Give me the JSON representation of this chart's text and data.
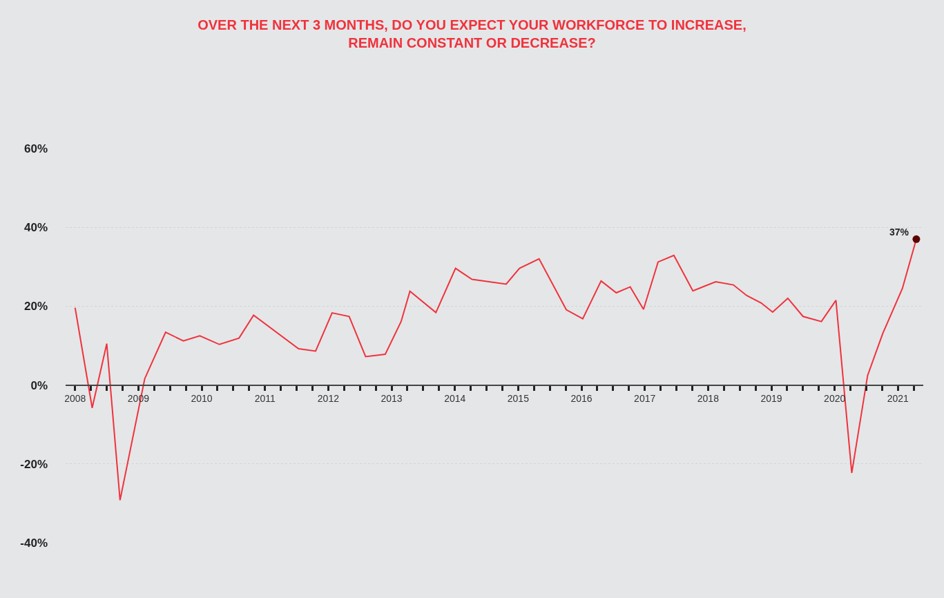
{
  "chart_data": {
    "type": "line",
    "title": "OVER THE NEXT 3 MONTHS, DO YOU EXPECT YOUR WORKFORCE TO INCREASE,\nREMAIN CONSTANT OR DECREASE?",
    "series": [
      {
        "color": "#f0323c",
        "x": [
          2008.0,
          2008.27,
          2008.5,
          2008.71,
          2009.1,
          2009.43,
          2009.71,
          2009.97,
          2010.28,
          2010.59,
          2010.82,
          2011.53,
          2011.8,
          2012.06,
          2012.33,
          2012.59,
          2012.9,
          2013.15,
          2013.29,
          2013.7,
          2014.01,
          2014.27,
          2014.81,
          2015.02,
          2015.33,
          2015.76,
          2016.02,
          2016.31,
          2016.55,
          2016.77,
          2016.98,
          2017.21,
          2017.46,
          2017.76,
          2018.12,
          2018.4,
          2018.61,
          2018.84,
          2019.02,
          2019.26,
          2019.5,
          2019.79,
          2020.02,
          2020.27,
          2020.52,
          2020.76,
          2021.07,
          2021.29
        ],
        "values": [
          19.6,
          -5.8,
          10.5,
          -29.2,
          1.6,
          13.4,
          11.2,
          12.5,
          10.3,
          11.9,
          17.7,
          9.2,
          8.6,
          18.3,
          17.4,
          7.2,
          7.8,
          16.1,
          23.8,
          18.4,
          29.6,
          26.8,
          25.6,
          29.6,
          32.0,
          19.1,
          16.8,
          26.4,
          23.4,
          24.9,
          19.2,
          31.2,
          32.9,
          23.9,
          26.2,
          25.4,
          22.7,
          20.8,
          18.5,
          22.0,
          17.4,
          16.1,
          21.5,
          -22.3,
          2.4,
          13.1,
          24.5,
          37
        ]
      },
      {
        "type": "scatter",
        "color": "#5c0000",
        "x": [
          2021.29
        ],
        "values": [
          37
        ]
      }
    ],
    "annotations": [
      {
        "text": "37%",
        "x": 2021.29,
        "y": 37
      }
    ],
    "xlim": [
      2007.85,
      2021.4
    ],
    "xticks": [
      2008,
      {
        "value": 2008.25,
        "label": null
      },
      {
        "value": 2008.5,
        "label": null
      },
      {
        "value": 2008.75,
        "label": null
      },
      2009,
      {
        "value": 2009.25,
        "label": null
      },
      {
        "value": 2009.5,
        "label": null
      },
      {
        "value": 2009.75,
        "label": null
      },
      2010,
      {
        "value": 2010.25,
        "label": null
      },
      {
        "value": 2010.5,
        "label": null
      },
      {
        "value": 2010.75,
        "label": null
      },
      2011,
      {
        "value": 2011.25,
        "label": null
      },
      {
        "value": 2011.5,
        "label": null
      },
      {
        "value": 2011.75,
        "label": null
      },
      2012,
      {
        "value": 2012.25,
        "label": null
      },
      {
        "value": 2012.5,
        "label": null
      },
      {
        "value": 2012.75,
        "label": null
      },
      2013,
      {
        "value": 2013.25,
        "label": null
      },
      {
        "value": 2013.5,
        "label": null
      },
      {
        "value": 2013.75,
        "label": null
      },
      2014,
      {
        "value": 2014.25,
        "label": null
      },
      {
        "value": 2014.5,
        "label": null
      },
      {
        "value": 2014.75,
        "label": null
      },
      2015,
      {
        "value": 2015.25,
        "label": null
      },
      {
        "value": 2015.5,
        "label": null
      },
      {
        "value": 2015.75,
        "label": null
      },
      2016,
      {
        "value": 2016.25,
        "label": null
      },
      {
        "value": 2016.5,
        "label": null
      },
      {
        "value": 2016.75,
        "label": null
      },
      2017,
      {
        "value": 2017.25,
        "label": null
      },
      {
        "value": 2017.5,
        "label": null
      },
      {
        "value": 2017.75,
        "label": null
      },
      2018,
      {
        "value": 2018.25,
        "label": null
      },
      {
        "value": 2018.5,
        "label": null
      },
      {
        "value": 2018.75,
        "label": null
      },
      2019,
      {
        "value": 2019.25,
        "label": null
      },
      {
        "value": 2019.5,
        "label": null
      },
      {
        "value": 2019.75,
        "label": null
      },
      2020,
      {
        "value": 2020.25,
        "label": null
      },
      {
        "value": 2020.5,
        "label": null
      },
      {
        "value": 2020.75,
        "label": null
      },
      2021,
      {
        "value": 2021.25,
        "label": null
      }
    ],
    "ylim": [
      -40,
      60
    ],
    "yticks": [
      {
        "value": -40,
        "label": "-40%"
      },
      {
        "value": -20,
        "label": "-20%"
      },
      {
        "value": 0,
        "label": "0%"
      },
      {
        "value": 20,
        "label": "20%"
      },
      {
        "value": 40,
        "label": "40%"
      },
      {
        "value": 60,
        "label": "60%"
      }
    ],
    "grid": "y",
    "line_style": "solid"
  }
}
